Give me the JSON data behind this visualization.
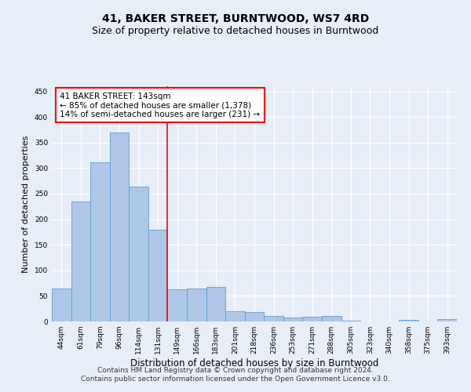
{
  "title": "41, BAKER STREET, BURNTWOOD, WS7 4RD",
  "subtitle": "Size of property relative to detached houses in Burntwood",
  "xlabel": "Distribution of detached houses by size in Burntwood",
  "ylabel": "Number of detached properties",
  "categories": [
    "44sqm",
    "61sqm",
    "79sqm",
    "96sqm",
    "114sqm",
    "131sqm",
    "149sqm",
    "166sqm",
    "183sqm",
    "201sqm",
    "218sqm",
    "236sqm",
    "253sqm",
    "271sqm",
    "288sqm",
    "305sqm",
    "323sqm",
    "340sqm",
    "358sqm",
    "375sqm",
    "393sqm"
  ],
  "values": [
    65,
    234,
    312,
    370,
    263,
    180,
    63,
    65,
    67,
    20,
    18,
    10,
    7,
    9,
    10,
    2,
    0,
    0,
    3,
    0,
    4
  ],
  "bar_color": "#aec6e8",
  "bar_edge_color": "#5a9fd4",
  "vline_x": 5.5,
  "vline_color": "red",
  "annotation_text": "41 BAKER STREET: 143sqm\n← 85% of detached houses are smaller (1,378)\n14% of semi-detached houses are larger (231) →",
  "annotation_box_color": "white",
  "annotation_box_edge_color": "red",
  "ylim": [
    0,
    460
  ],
  "yticks": [
    0,
    50,
    100,
    150,
    200,
    250,
    300,
    350,
    400,
    450
  ],
  "footer_line1": "Contains HM Land Registry data © Crown copyright and database right 2024.",
  "footer_line2": "Contains public sector information licensed under the Open Government Licence v3.0.",
  "background_color": "#e8eef8",
  "plot_bg_color": "#e8eef8",
  "title_fontsize": 10,
  "subtitle_fontsize": 9,
  "xlabel_fontsize": 8.5,
  "ylabel_fontsize": 8,
  "tick_fontsize": 6.5,
  "footer_fontsize": 6.5,
  "annotation_fontsize": 7.5
}
